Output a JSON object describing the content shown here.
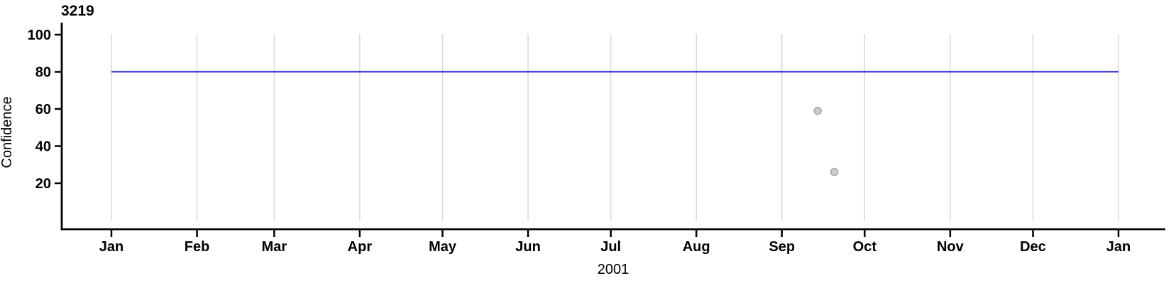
{
  "chart": {
    "title": "3219",
    "xlabel": "2001",
    "ylabel": "Confidence"
  },
  "chart_data": {
    "type": "line+scatter",
    "title": "3219",
    "xlabel": "2001",
    "ylabel": "Confidence",
    "x_axis": {
      "kind": "time",
      "unit": "day-of-year",
      "tick_labels": [
        "Jan",
        "Feb",
        "Mar",
        "Apr",
        "May",
        "Jun",
        "Jul",
        "Aug",
        "Sep",
        "Oct",
        "Nov",
        "Dec",
        "Jan"
      ],
      "tick_days": [
        0,
        31,
        59,
        90,
        120,
        151,
        181,
        212,
        243,
        273,
        304,
        334,
        365
      ],
      "domain_days": [
        -18,
        382
      ]
    },
    "y_axis": {
      "tick_labels": [
        "20",
        "40",
        "60",
        "80",
        "100"
      ],
      "tick_values": [
        20,
        40,
        60,
        80,
        100
      ],
      "ylim": [
        -4.5,
        106.5
      ]
    },
    "grid": {
      "vertical": true,
      "horizontal": false,
      "color": "#D6D6D6"
    },
    "series": [
      {
        "name": "reference-line",
        "type": "line",
        "color": "#0000CC",
        "width": 1.8,
        "points": [
          {
            "day": 0,
            "value": 80
          },
          {
            "day": 365,
            "value": 80
          }
        ]
      },
      {
        "name": "observations",
        "type": "scatter",
        "fill": "#CBCBCB",
        "stroke": "#9B9B9B",
        "radius": 5,
        "points": [
          {
            "day": 256,
            "value": 59
          },
          {
            "day": 262,
            "value": 26
          }
        ]
      }
    ]
  },
  "colors": {
    "background": "#FFFFFF",
    "axis": "#000000",
    "grid": "#D6D6D6",
    "reference_line": "#0000CC",
    "point_fill": "#CBCBCB",
    "point_stroke": "#9B9B9B"
  }
}
